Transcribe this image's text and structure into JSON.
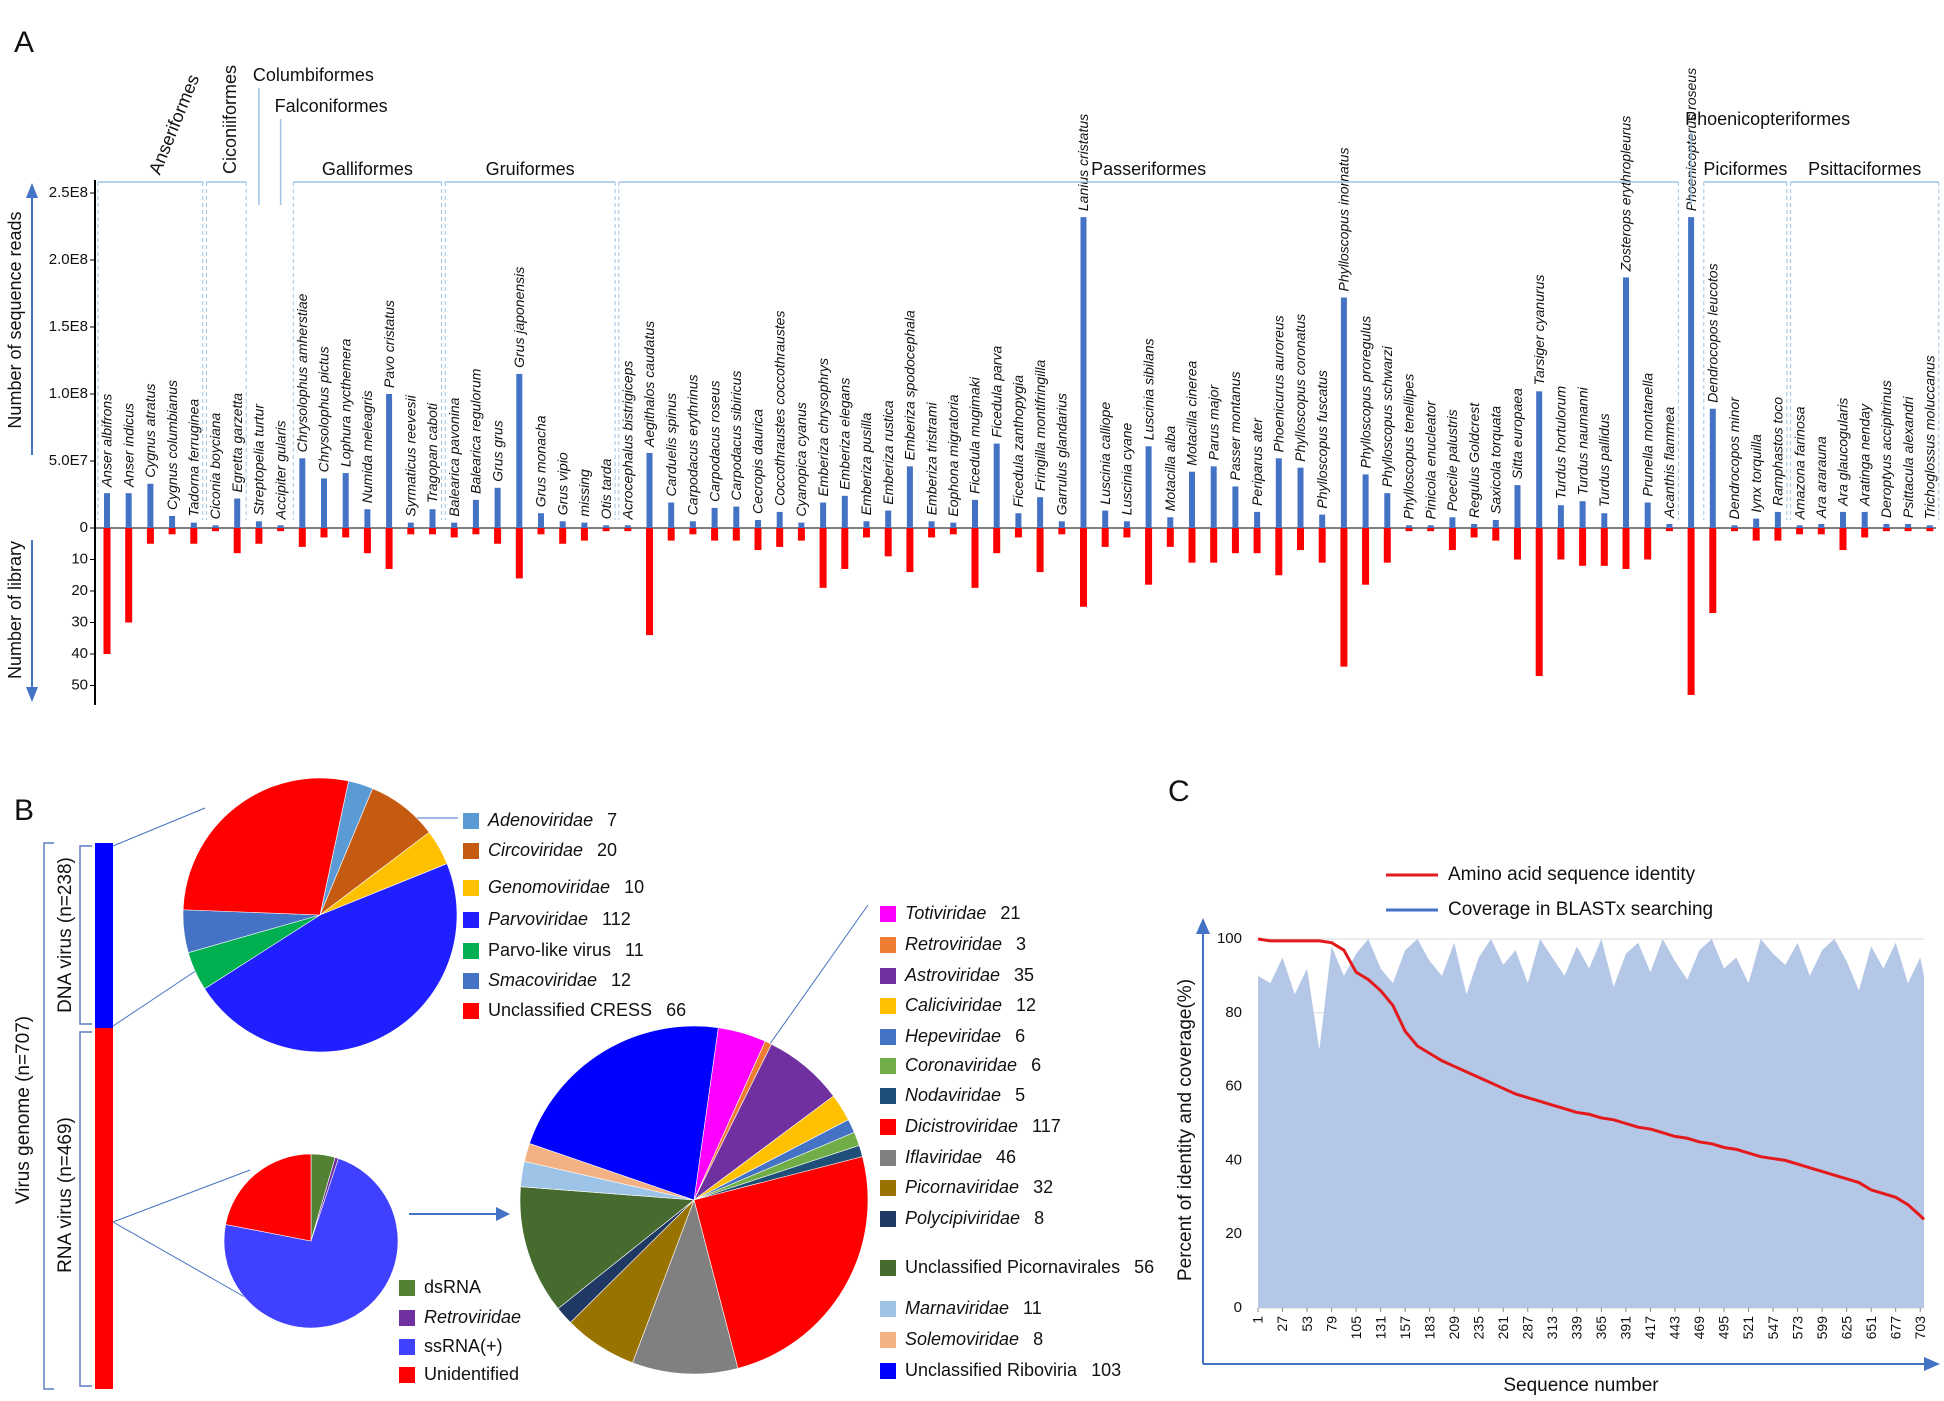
{
  "chart_data": [
    {
      "type": "bar",
      "panel_label": "A",
      "ylabel": "Number of sequence reads",
      "y2label": "Number of library",
      "ylim": [
        0,
        250000000
      ],
      "yticks": [
        0,
        {
          "value": 50000000,
          "label": "5.0E7"
        },
        {
          "value": 100000000,
          "label": "1.0E8"
        },
        {
          "value": 150000000,
          "label": "1.5E8"
        },
        {
          "value": 200000000,
          "label": "2.0E8"
        },
        {
          "value": 250000000,
          "label": "2.5E8"
        }
      ],
      "y2lim": [
        0,
        55
      ],
      "y2ticks": [
        10,
        20,
        30,
        40,
        50
      ],
      "color": "#4472c4",
      "y2color": "#ff0000",
      "groups": [
        {
          "name": "Anseriformes",
          "categories": [
            "Anser albifrons",
            "Anser indicus",
            "Cygnus atratus",
            "Cygnus columbianus",
            "Tadorna ferruginea"
          ],
          "reads": [
            26000000,
            26000000,
            33000000,
            9000000,
            4000000
          ],
          "libraries": [
            40,
            30,
            5,
            2,
            5
          ]
        },
        {
          "name": "Ciconiiformes",
          "categories": [
            "Ciconia boyciana",
            "Egretta garzetta"
          ],
          "reads": [
            2000000,
            22000000
          ],
          "libraries": [
            1,
            8
          ]
        },
        {
          "name": "Columbiformes",
          "categories": [
            "Streptopelia turtur"
          ],
          "reads": [
            5000000
          ],
          "libraries": [
            5
          ]
        },
        {
          "name": "Falconiformes",
          "categories": [
            "Accipiter gularis"
          ],
          "reads": [
            2000000
          ],
          "libraries": [
            1
          ]
        },
        {
          "name": "Galliformes",
          "categories": [
            "Chrysolophus amherstiae",
            "Chrysolophus pictus",
            "Lophura nycthemera",
            "Numida meleagris",
            "Pavo cristatus",
            "Syrmaticus reevesii",
            "Tragopan caboti"
          ],
          "reads": [
            52000000,
            37000000,
            41000000,
            14000000,
            100000000,
            4000000,
            14000000
          ],
          "libraries": [
            6,
            3,
            3,
            8,
            13,
            2,
            2
          ]
        },
        {
          "name": "Gruiformes",
          "categories": [
            "Balearica pavonina",
            "Balearica regulorum",
            "Grus grus",
            "Grus japonensis",
            "Grus monacha",
            "Grus vipio",
            "missing",
            "Otis tarda"
          ],
          "reads": [
            4000000,
            21000000,
            30000000,
            115000000,
            11000000,
            5000000,
            4000000,
            2000000
          ],
          "libraries": [
            3,
            2,
            5,
            16,
            2,
            5,
            4,
            1
          ]
        },
        {
          "name": "Passeriformes",
          "categories": [
            "Acrocephalus bistrigiceps",
            "Aegithalos caudatus",
            "Carduelis spinus",
            "Carpodacus erythrinus",
            "Carpodacus roseus",
            "Carpodacus sibiricus",
            "Cecropis daurica",
            "Coccothraustes coccothraustes",
            "Cyanopica cyanus",
            "Emberiza chrysophrys",
            "Emberiza elegans",
            "Emberiza pusilla",
            "Emberiza rustica",
            "Emberiza spodocephala",
            "Emberiza tristrami",
            "Eophona migratoria",
            "Ficedula mugimaki",
            "Ficedula parva",
            "Ficedula zanthopygia",
            "Fringilla montifringilla",
            "Garrulus glandarius",
            "Lanius cristatus",
            "Luscinia calliope",
            "Luscinia cyane",
            "Luscinia sibilans",
            "Motacilla alba",
            "Motacilla cinerea",
            "Parus major",
            "Passer montanus",
            "Periparus ater",
            "Phoenicurus auroreus",
            "Phylloscopus coronatus",
            "Phylloscopus fuscatus",
            "Phylloscopus inornatus",
            "Phylloscopus proregulus",
            "Phylloscopus schwarzi",
            "Phylloscopus tenellipes",
            "Pinicola enucleator",
            "Poecile palustris",
            "Regulus Goldcrest",
            "Saxicola torquata",
            "Sitta europaea",
            "Tarsiger cyanurus",
            "Turdus hortulorum",
            "Turdus naumanni",
            "Turdus pallidus",
            "Zosterops erythropleurus",
            "Prunella montanella",
            "Acanthis flammea"
          ],
          "reads": [
            2000000,
            56000000,
            19000000,
            5000000,
            15000000,
            16000000,
            6000000,
            12000000,
            4000000,
            19000000,
            24000000,
            5000000,
            13000000,
            46000000,
            5000000,
            4000000,
            21000000,
            63000000,
            11000000,
            23000000,
            5000000,
            232000000,
            13000000,
            5000000,
            61000000,
            8000000,
            42000000,
            46000000,
            31000000,
            12000000,
            52000000,
            45000000,
            10000000,
            172000000,
            40000000,
            26000000,
            2000000,
            2000000,
            8000000,
            3000000,
            6000000,
            32000000,
            102000000,
            17000000,
            20000000,
            11000000,
            187000000,
            19000000,
            3000000
          ],
          "libraries": [
            1,
            34,
            4,
            2,
            4,
            4,
            7,
            6,
            4,
            19,
            13,
            3,
            9,
            14,
            3,
            2,
            19,
            8,
            3,
            14,
            2,
            25,
            6,
            3,
            18,
            6,
            11,
            11,
            8,
            8,
            15,
            7,
            11,
            44,
            18,
            11,
            1,
            1,
            7,
            3,
            4,
            10,
            47,
            10,
            12,
            12,
            13,
            10,
            1
          ]
        },
        {
          "name": "Phoenicopteriformes",
          "categories": [
            "Phoenicopterus roseus"
          ],
          "reads": [
            232000000
          ],
          "libraries": [
            53
          ]
        },
        {
          "name": "Piciformes",
          "categories": [
            "Dendrocopos leucotos",
            "Dendrocopos minor",
            "Iynx torquilla",
            "Ramphastos toco"
          ],
          "reads": [
            89000000,
            2000000,
            7000000,
            12000000
          ],
          "libraries": [
            27,
            1,
            4,
            4
          ]
        },
        {
          "name": "Psittaciformes",
          "categories": [
            "Amazona farinosa",
            "Ara ararauna",
            "Ara glaucogularis",
            "Aratinga nenday",
            "Deroptyus accipitrinus",
            "Psittacula alexandri",
            "Trichoglossus moluccanus"
          ],
          "reads": [
            2000000,
            3000000,
            12000000,
            12000000,
            3000000,
            3000000,
            2000000
          ],
          "libraries": [
            2,
            2,
            7,
            3,
            1,
            1,
            1
          ]
        }
      ]
    },
    {
      "type": "pie",
      "panel_label": "B",
      "genome_label": "Virus genome (n=707)",
      "dna_label": "DNA virus (n=238)",
      "categories": [
        "Adenoviridae",
        "Circoviridae",
        "Genomoviridae",
        "Parvoviridae",
        "Parvo-like virus",
        "Smacoviridae",
        "Unclassified CRESS"
      ],
      "values": [
        7,
        20,
        10,
        112,
        11,
        12,
        66
      ],
      "colors": [
        "#5b9bd5",
        "#c55a11",
        "#ffc000",
        "#1f1fff",
        "#00b050",
        "#4472c4",
        "#ff0000"
      ]
    },
    {
      "type": "pie",
      "rna_label": "RNA virus (n=469)",
      "categories": [
        "dsRNA",
        "Retroviridae",
        "ssRNA(+)",
        "Unidentified"
      ],
      "values": [
        21,
        3,
        342,
        103
      ],
      "colors": [
        "#548235",
        "#7030a0",
        "#4040ff",
        "#ff0000"
      ]
    },
    {
      "type": "pie",
      "categories": [
        "Totiviridae",
        "Retroviridae",
        "Astroviridae",
        "Caliciviridae",
        "Hepeviridae",
        "Coronaviridae",
        "Nodaviridae",
        "Dicistroviridae",
        "Iflaviridae",
        "Picornaviridae",
        "Polycipiviridae",
        "Unclassified Picornavirales",
        "Marnaviridae",
        "Solemoviridae",
        "Unclassified Riboviria"
      ],
      "values": [
        21,
        3,
        35,
        12,
        6,
        6,
        5,
        117,
        46,
        32,
        8,
        56,
        11,
        8,
        103
      ],
      "colors": [
        "#ff00ff",
        "#ed7d31",
        "#7030a0",
        "#ffc000",
        "#4472c4",
        "#70ad47",
        "#1f4e79",
        "#ff0000",
        "#808080",
        "#997300",
        "#203864",
        "#476b2e",
        "#9dc3e6",
        "#f4b183",
        "#0000ff"
      ]
    },
    {
      "type": "line",
      "panel_label": "C",
      "xlabel": "Sequence number",
      "ylabel": "Percent of identity and coverage(%)",
      "xlim": [
        1,
        707
      ],
      "ylim": [
        0,
        100
      ],
      "xticks": [
        1,
        27,
        53,
        79,
        105,
        131,
        157,
        183,
        209,
        235,
        261,
        287,
        313,
        339,
        365,
        391,
        417,
        443,
        469,
        495,
        521,
        547,
        573,
        599,
        625,
        651,
        677,
        703
      ],
      "yticks": [
        0,
        20,
        40,
        60,
        80,
        100
      ],
      "grid": true,
      "x": [
        1,
        14,
        27,
        40,
        53,
        66,
        79,
        92,
        105,
        118,
        131,
        144,
        157,
        170,
        183,
        196,
        209,
        222,
        235,
        248,
        261,
        274,
        287,
        300,
        313,
        326,
        339,
        352,
        365,
        378,
        391,
        404,
        417,
        430,
        443,
        456,
        469,
        482,
        495,
        508,
        521,
        534,
        547,
        560,
        573,
        586,
        599,
        612,
        625,
        638,
        651,
        664,
        677,
        690,
        703,
        707
      ],
      "series": [
        {
          "name": "Amino acid sequence identity",
          "color": "#e31a1c",
          "values": [
            100,
            99.5,
            99.5,
            99.5,
            99.5,
            99.5,
            99,
            97,
            91,
            89,
            86,
            82,
            75,
            71,
            69,
            67,
            65.5,
            64,
            62.5,
            61,
            59.5,
            58,
            57,
            56,
            55,
            54,
            53,
            52.5,
            51.5,
            51,
            50,
            49,
            48.5,
            47.5,
            46.5,
            46,
            45,
            44.5,
            43.5,
            43,
            42,
            41,
            40.5,
            40,
            39,
            38,
            37,
            36,
            35,
            34,
            32,
            31,
            30,
            28,
            25,
            24
          ]
        },
        {
          "name": "Coverage in BLASTx searching",
          "color": "#4472c4",
          "fill": "#b4c7e7",
          "values": [
            90,
            88,
            95,
            85,
            92,
            70,
            98,
            90,
            96,
            100,
            92,
            88,
            97,
            100,
            94,
            90,
            99,
            85,
            95,
            100,
            93,
            97,
            88,
            100,
            95,
            90,
            98,
            92,
            100,
            87,
            96,
            99,
            91,
            100,
            94,
            89,
            97,
            100,
            92,
            95,
            88,
            100,
            96,
            93,
            99,
            90,
            97,
            100,
            94,
            86,
            98,
            92,
            99,
            88,
            95,
            90
          ]
        }
      ]
    }
  ]
}
